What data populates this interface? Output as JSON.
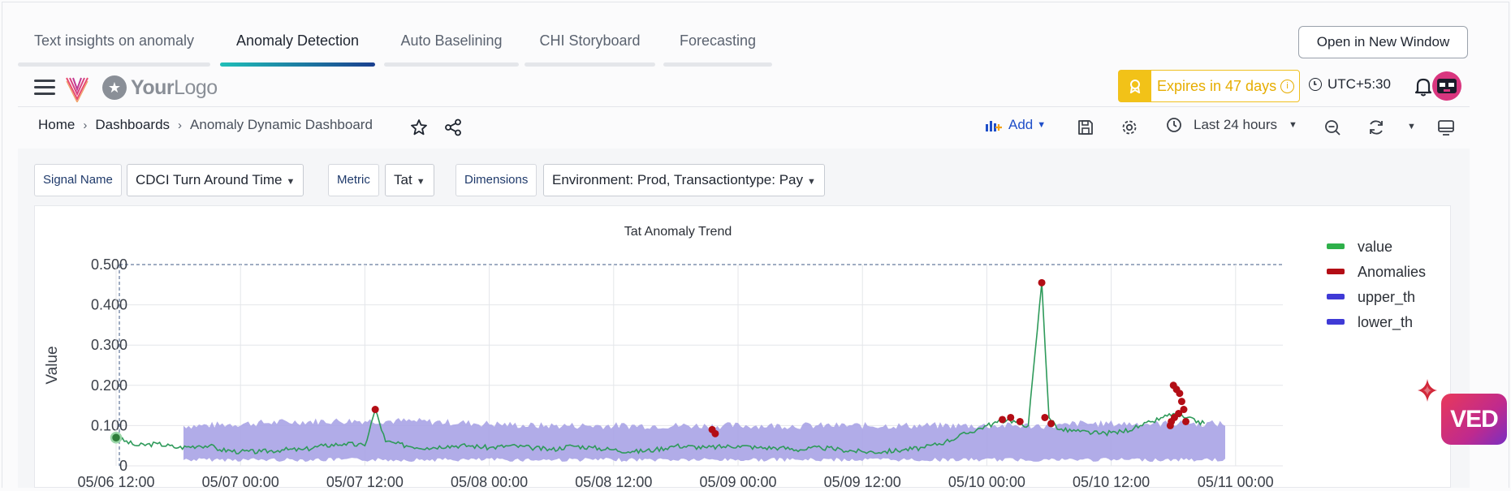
{
  "tabs": [
    {
      "label": "Text insights on anomaly",
      "active": false
    },
    {
      "label": "Anomaly Detection",
      "active": true
    },
    {
      "label": "Auto Baselining",
      "active": false
    },
    {
      "label": "CHI Storyboard",
      "active": false
    },
    {
      "label": "Forecasting",
      "active": false
    }
  ],
  "open_new_window_label": "Open in New Window",
  "header": {
    "logo_text_bold": "Your",
    "logo_text_light": "Logo",
    "expires_label": "Expires in 47 days",
    "timezone": "UTC+5:30",
    "colors": {
      "accent_yellow": "#f2c218",
      "link_blue": "#1f4fc9"
    }
  },
  "breadcrumb": [
    "Home",
    "Dashboards",
    "Anomaly Dynamic Dashboard"
  ],
  "breadcrumb_separator": "›",
  "toolbar": {
    "add_label": "Add",
    "time_range": "Last 24 hours"
  },
  "filters": {
    "signal_name_label": "Signal Name",
    "signal_name_value": "CDCI Turn Around Time",
    "metric_label": "Metric",
    "metric_value": "Tat",
    "dimensions_label": "Dimensions",
    "dimensions_value": "Environment: Prod, Transactiontype: Pay"
  },
  "floating_badge": "VED",
  "chart_data": {
    "type": "line",
    "title": "Tat Anomaly Trend",
    "ylabel": "Value",
    "xlabel": "",
    "ylim": [
      0,
      0.5
    ],
    "yticks": [
      "0",
      "0.100",
      "0.200",
      "0.300",
      "0.400",
      "0.500"
    ],
    "xticks": [
      "05/06 12:00",
      "05/07 00:00",
      "05/07 12:00",
      "05/08 00:00",
      "05/08 12:00",
      "05/09 00:00",
      "05/09 12:00",
      "05/10 00:00",
      "05/10 12:00",
      "05/11 00:00"
    ],
    "x_range_hours": [
      0,
      114
    ],
    "grid": true,
    "legend_position": "right",
    "series": [
      {
        "name": "value",
        "color": "#2eb04a",
        "points": [
          [
            0,
            0.07
          ],
          [
            2,
            0.05
          ],
          [
            4,
            0.055
          ],
          [
            6,
            0.045
          ],
          [
            8,
            0.05
          ],
          [
            9,
            0.05
          ],
          [
            10,
            0.04
          ],
          [
            12,
            0.035
          ],
          [
            14,
            0.035
          ],
          [
            16,
            0.04
          ],
          [
            18,
            0.04
          ],
          [
            20,
            0.05
          ],
          [
            22,
            0.055
          ],
          [
            24,
            0.05
          ],
          [
            25,
            0.14
          ],
          [
            26,
            0.06
          ],
          [
            28,
            0.05
          ],
          [
            30,
            0.045
          ],
          [
            32,
            0.05
          ],
          [
            34,
            0.05
          ],
          [
            36,
            0.045
          ],
          [
            38,
            0.05
          ],
          [
            40,
            0.045
          ],
          [
            42,
            0.04
          ],
          [
            44,
            0.05
          ],
          [
            46,
            0.045
          ],
          [
            48,
            0.04
          ],
          [
            50,
            0.035
          ],
          [
            52,
            0.04
          ],
          [
            54,
            0.05
          ],
          [
            57,
            0.045
          ],
          [
            60,
            0.05
          ],
          [
            62,
            0.045
          ],
          [
            64,
            0.045
          ],
          [
            66,
            0.04
          ],
          [
            68,
            0.045
          ],
          [
            70,
            0.04
          ],
          [
            72,
            0.035
          ],
          [
            74,
            0.035
          ],
          [
            76,
            0.04
          ],
          [
            78,
            0.045
          ],
          [
            80,
            0.06
          ],
          [
            82,
            0.08
          ],
          [
            84,
            0.1
          ],
          [
            86,
            0.115
          ],
          [
            88,
            0.1
          ],
          [
            89.3,
            0.455
          ],
          [
            90,
            0.12
          ],
          [
            91,
            0.09
          ],
          [
            93,
            0.085
          ],
          [
            95,
            0.08
          ],
          [
            97,
            0.085
          ],
          [
            99,
            0.1
          ],
          [
            100,
            0.11
          ],
          [
            101,
            0.12
          ],
          [
            102,
            0.13
          ],
          [
            103,
            0.12
          ],
          [
            105,
            0.105
          ]
        ]
      },
      {
        "name": "Anomalies",
        "color": "#b30d15",
        "points": [
          [
            0,
            0.07
          ],
          [
            25,
            0.14
          ],
          [
            57.5,
            0.09
          ],
          [
            57.8,
            0.08
          ],
          [
            85.5,
            0.115
          ],
          [
            86.3,
            0.12
          ],
          [
            87.2,
            0.11
          ],
          [
            89.3,
            0.455
          ],
          [
            89.6,
            0.12
          ],
          [
            90.2,
            0.105
          ],
          [
            102,
            0.2
          ],
          [
            102.3,
            0.19
          ],
          [
            102.6,
            0.18
          ],
          [
            102.8,
            0.16
          ],
          [
            103,
            0.14
          ],
          [
            102.5,
            0.13
          ],
          [
            102.1,
            0.12
          ],
          [
            101.8,
            0.11
          ],
          [
            103.2,
            0.11
          ],
          [
            101.7,
            0.1
          ]
        ]
      },
      {
        "name": "upper_th",
        "color": "#3f3ad6"
      },
      {
        "name": "lower_th",
        "color": "#3f3ad6"
      }
    ],
    "threshold_band": {
      "color": "#a9a3e6",
      "x_start": 6.5,
      "x_end": 107,
      "low": 0.02,
      "high": 0.1
    }
  }
}
